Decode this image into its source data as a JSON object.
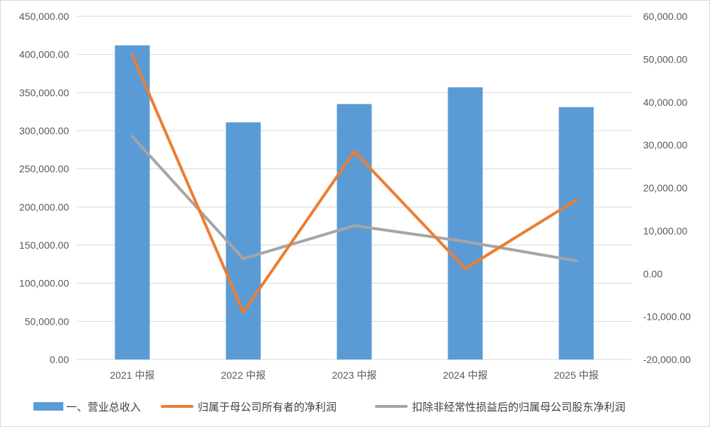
{
  "chart_data": {
    "type": "bar",
    "categories": [
      "2021 中报",
      "2022 中报",
      "2023 中报",
      "2024 中报",
      "2025 中报"
    ],
    "series": [
      {
        "name": "一、营业总收入",
        "type": "bar",
        "axis": "left",
        "color": "#5b9bd5",
        "values": [
          412000,
          311000,
          335000,
          357000,
          331000
        ]
      },
      {
        "name": "归属于母公司所有者的净利润",
        "type": "line",
        "axis": "right",
        "color": "#ed7d31",
        "values": [
          51000,
          -9000,
          28500,
          1200,
          17200
        ]
      },
      {
        "name": "扣除非经常性损益后的归属母公司股东净利润",
        "type": "line",
        "axis": "right",
        "color": "#a5a5a5",
        "values": [
          32000,
          3500,
          11200,
          7500,
          3000
        ]
      }
    ],
    "y_left": {
      "ylim": [
        0,
        450000
      ],
      "ticks": [
        "0.00",
        "50,000.00",
        "100,000.00",
        "150,000.00",
        "200,000.00",
        "250,000.00",
        "300,000.00",
        "350,000.00",
        "400,000.00",
        "450,000.00"
      ]
    },
    "y_right": {
      "ylim": [
        -20000,
        60000
      ],
      "ticks": [
        "-20,000.00",
        "-10,000.00",
        "0.00",
        "10,000.00",
        "20,000.00",
        "30,000.00",
        "40,000.00",
        "50,000.00",
        "60,000.00"
      ]
    },
    "grid": true,
    "legend": "bottom",
    "grid_color": "#d9d9d9"
  }
}
